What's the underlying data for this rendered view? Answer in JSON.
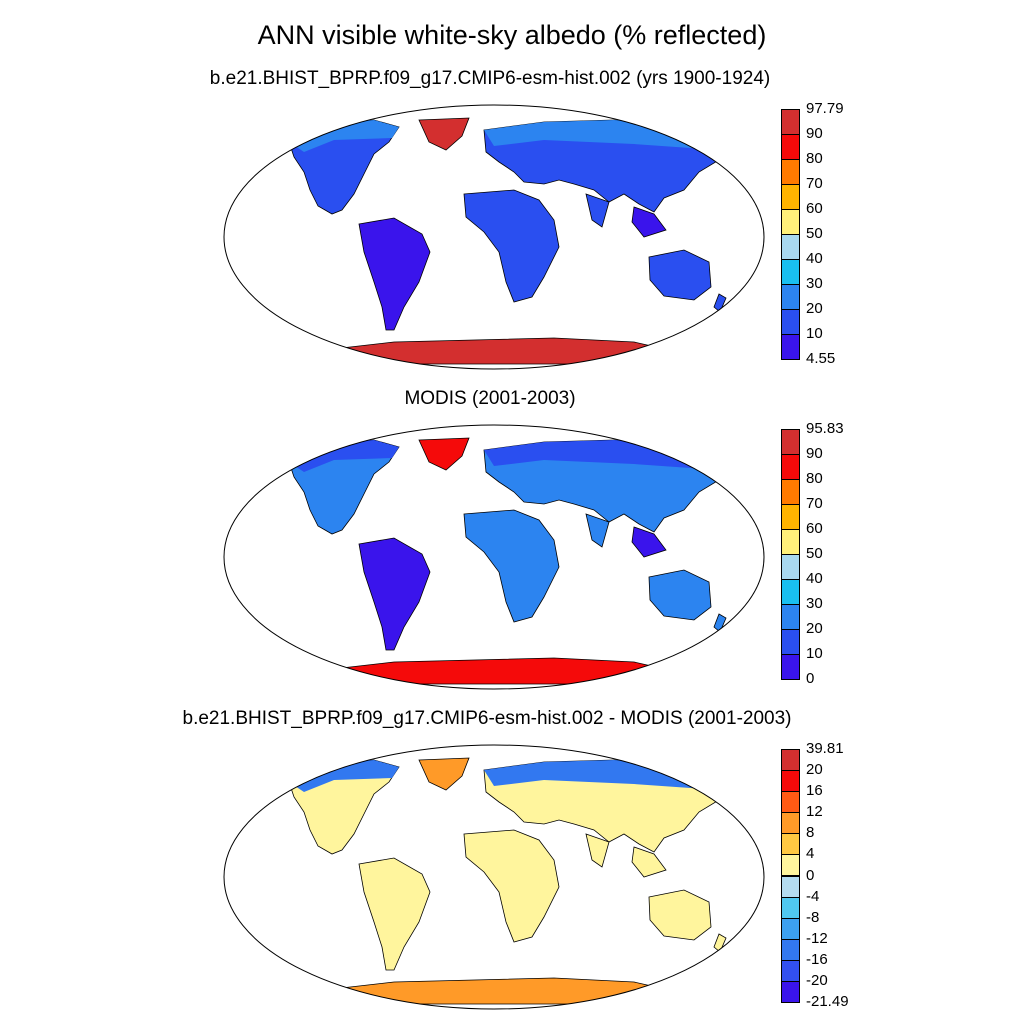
{
  "title": "ANN visible white-sky albedo (% reflected)",
  "panels": [
    {
      "title": "b.e21.BHIST_BPRP.f09_g17.CMIP6-esm-hist.002 (yrs 1900-1924)",
      "colorbar": {
        "labels": [
          "97.79",
          "90",
          "80",
          "70",
          "60",
          "50",
          "40",
          "30",
          "20",
          "10",
          "4.55"
        ],
        "colors": [
          "#d32f2f",
          "#f50a0a",
          "#ff7a00",
          "#ffb300",
          "#fff07a",
          "#a8d8f0",
          "#19bff0",
          "#2c84f0",
          "#2a4ff0",
          "#3a14ec"
        ]
      }
    },
    {
      "title": "MODIS (2001-2003)",
      "colorbar": {
        "labels": [
          "95.83",
          "90",
          "80",
          "70",
          "60",
          "50",
          "40",
          "30",
          "20",
          "10",
          "0"
        ],
        "colors": [
          "#d32f2f",
          "#f50a0a",
          "#ff7a00",
          "#ffb300",
          "#fff07a",
          "#a8d8f0",
          "#19bff0",
          "#2c84f0",
          "#2a4ff0",
          "#3a14ec"
        ]
      }
    },
    {
      "title": "b.e21.BHIST_BPRP.f09_g17.CMIP6-esm-hist.002 - MODIS (2001-2003)",
      "colorbar": {
        "labels": [
          "39.81",
          "20",
          "16",
          "12",
          "8",
          "4",
          "0",
          "-4",
          "-8",
          "-12",
          "-16",
          "-20",
          "-21.49"
        ],
        "colors": [
          "#d32f2f",
          "#f50a0a",
          "#ff5a14",
          "#ff9a28",
          "#ffc842",
          "#fff59d",
          "#b4dcf0",
          "#50c8f0",
          "#3ca0f0",
          "#3278f0",
          "#3250f0",
          "#3a14ec"
        ]
      }
    }
  ],
  "map_fills": {
    "panel1": {
      "ocean": "#ffffff",
      "land": "#2a4ff0",
      "tropics": "#3a14ec",
      "ice_sheet": "#d32f2f",
      "high_lat": "#2c84f0"
    },
    "panel2": {
      "ocean": "#ffffff",
      "land": "#2c84f0",
      "tropics": "#3a14ec",
      "ice_sheet": "#f50a0a",
      "high_lat": "#2a4ff0"
    },
    "panel3": {
      "ocean": "#ffffff",
      "land": "#fff59d",
      "tropics": "#fff59d",
      "ice_sheet": "#ff9a28",
      "high_lat": "#3278f0"
    }
  }
}
